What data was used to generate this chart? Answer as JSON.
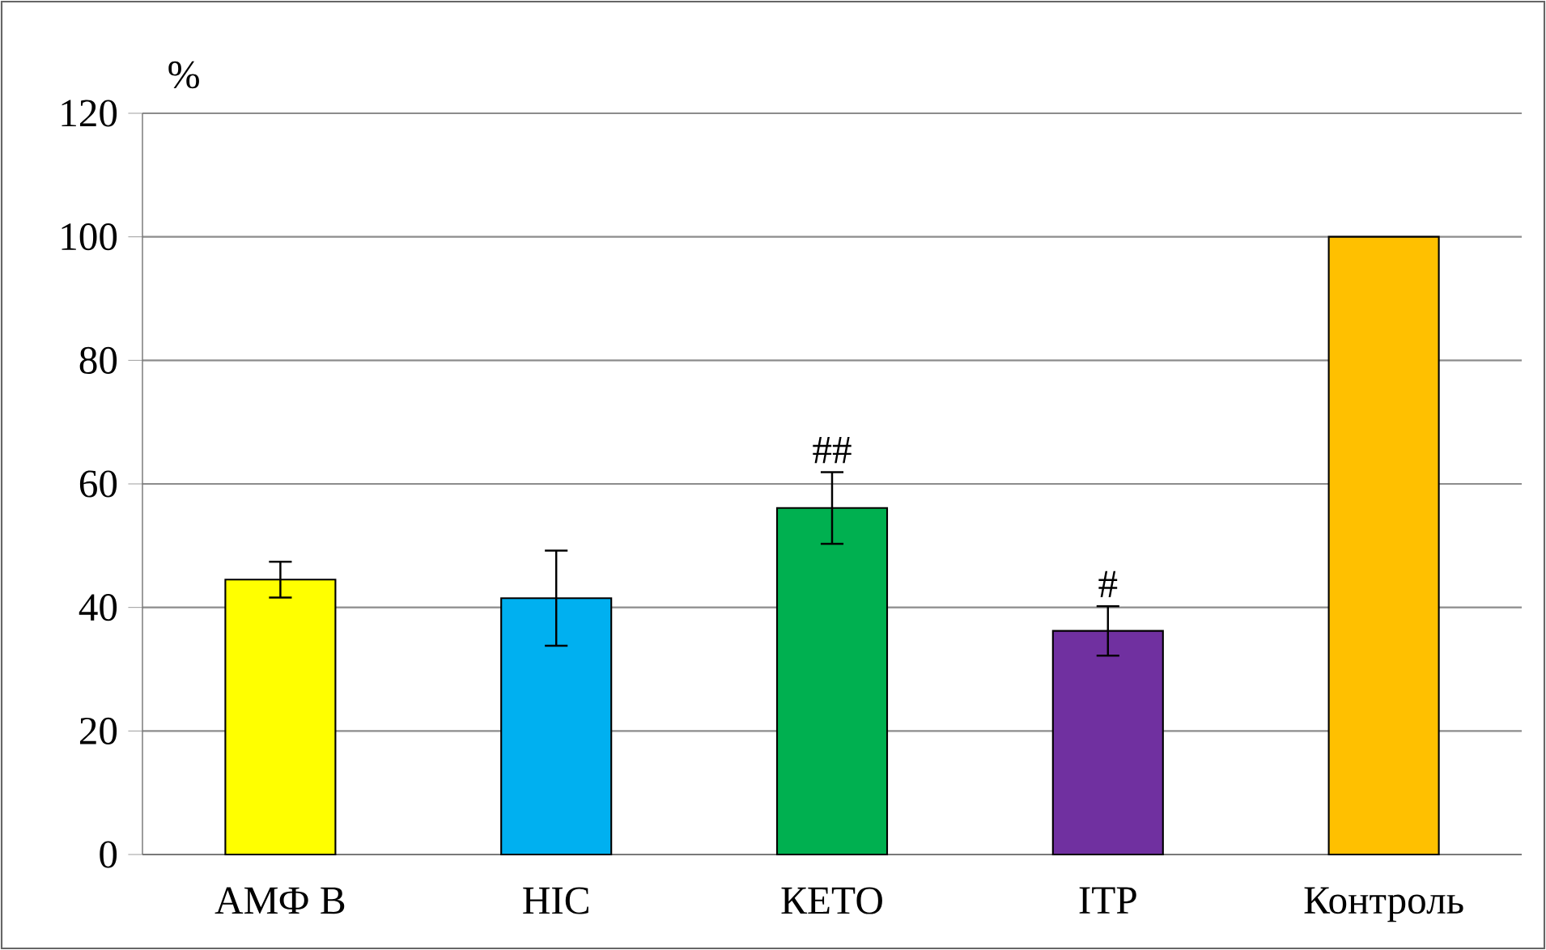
{
  "chart_data": {
    "type": "bar",
    "ylabel": "%",
    "categories": [
      "АМФ В",
      "HIC",
      "КЕТО",
      "ITP",
      "Контроль"
    ],
    "values": [
      44.5,
      41.5,
      56.1,
      36.2,
      100
    ],
    "errors": [
      2.9,
      7.7,
      5.8,
      4.0,
      null
    ],
    "colors": [
      "#ffff00",
      "#00b0f0",
      "#00b050",
      "#7030a0",
      "#ffc000"
    ],
    "ylim": [
      0,
      120
    ],
    "yticks": [
      0,
      20,
      40,
      60,
      80,
      100,
      120
    ],
    "grid": "y",
    "annotations": [
      {
        "text": "##",
        "x": "КЕТО",
        "y": 61.9
      },
      {
        "text": "#",
        "x": "ITP",
        "y": 40.2
      }
    ]
  }
}
